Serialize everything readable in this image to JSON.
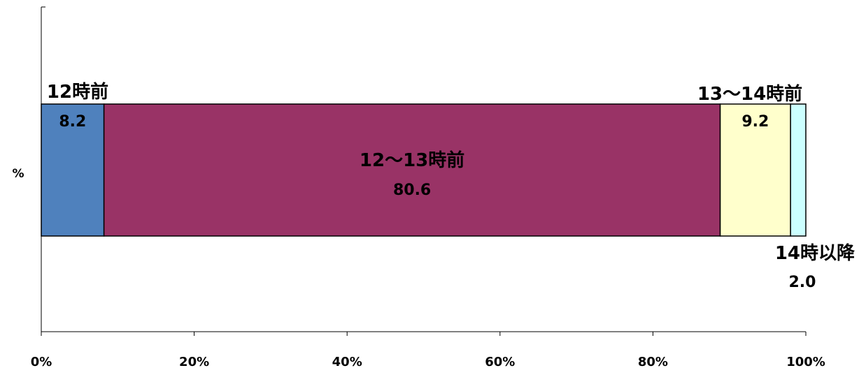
{
  "chart_data": {
    "type": "bar",
    "orientation": "horizontal",
    "stacked": true,
    "percent_stacked": true,
    "categories": [
      "%"
    ],
    "series": [
      {
        "name": "12時前",
        "values": [
          8.2
        ],
        "color": "#4f81bd",
        "value_label": "8.2"
      },
      {
        "name": "12～13時前",
        "values": [
          80.6
        ],
        "color": "#993366",
        "value_label": "80.6"
      },
      {
        "name": "13～14時前",
        "values": [
          9.2
        ],
        "color": "#ffffcc",
        "value_label": "9.2"
      },
      {
        "name": "14時以降",
        "values": [
          2.0
        ],
        "color": "#ccffff",
        "value_label": "2.0"
      }
    ],
    "xlim": [
      0,
      100
    ],
    "x_ticks": [
      "0%",
      "20%",
      "40%",
      "60%",
      "80%",
      "100%"
    ],
    "grid": false,
    "legend": "none"
  }
}
